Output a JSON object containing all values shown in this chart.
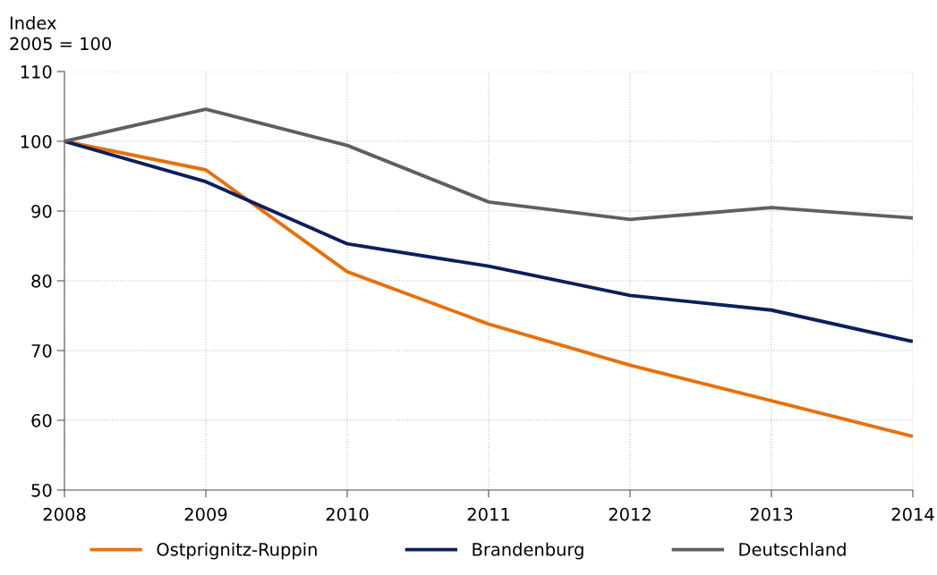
{
  "chart_data": {
    "type": "line",
    "ylabel": "Index\n2005 = 100",
    "x": [
      2008,
      2009,
      2010,
      2011,
      2012,
      2013,
      2014
    ],
    "series": [
      {
        "name": "Ostprignitz-Ruppin",
        "color": "#e8700f",
        "values": [
          100,
          95.9,
          81.3,
          73.8,
          67.9,
          62.8,
          57.7
        ]
      },
      {
        "name": "Brandenburg",
        "color": "#0a1f5c",
        "values": [
          100,
          94.2,
          85.3,
          82.1,
          77.9,
          75.8,
          71.3
        ]
      },
      {
        "name": "Deutschland",
        "color": "#5f5f5f",
        "values": [
          100,
          104.6,
          99.4,
          91.3,
          88.8,
          90.5,
          89.0
        ]
      }
    ],
    "xlim": [
      2008,
      2014
    ],
    "xticks": [
      2008,
      2009,
      2010,
      2011,
      2012,
      2013,
      2014
    ],
    "ylim": [
      50,
      110
    ],
    "yticks": [
      50,
      60,
      70,
      80,
      90,
      100,
      110
    ],
    "grid": true,
    "legend": "bottom",
    "marker": "none",
    "line_style": "solid"
  }
}
